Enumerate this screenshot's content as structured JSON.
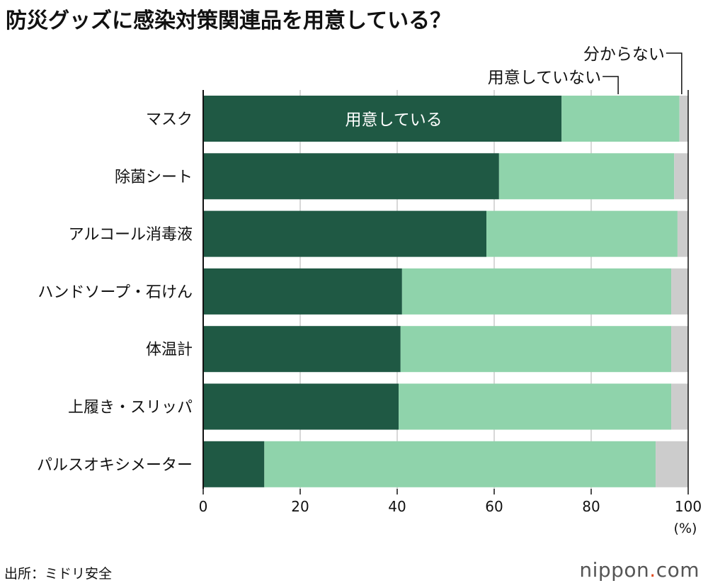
{
  "title": "防災グッズに感染対策関連品を用意している？",
  "source": "出所：ミドリ安全",
  "logo": {
    "main": "nippon",
    "dot": ".",
    "tld": "com"
  },
  "chart_data": {
    "type": "bar",
    "orientation": "horizontal-stacked",
    "title": "防災グッズに感染対策関連品を用意している？",
    "categories": [
      "マスク",
      "除菌シート",
      "アルコール消毒液",
      "ハンドソープ・石けん",
      "体温計",
      "上履き・スリッパ",
      "パルスオキシメーター"
    ],
    "series": [
      {
        "name": "用意している",
        "color": "#1f5944",
        "values": [
          73.9,
          61.0,
          58.4,
          41.0,
          40.7,
          40.3,
          12.6
        ]
      },
      {
        "name": "用意していない",
        "color": "#8fd3ab",
        "values": [
          24.3,
          36.1,
          39.4,
          55.5,
          55.8,
          56.2,
          80.7
        ]
      },
      {
        "name": "分からない",
        "color": "#cccccc",
        "values": [
          1.8,
          2.9,
          2.2,
          3.5,
          3.5,
          3.5,
          6.7
        ]
      }
    ],
    "xlim": [
      0,
      100
    ],
    "xticks": [
      "0",
      "20",
      "40",
      "60",
      "80",
      "100"
    ],
    "xlabel": "(%)",
    "grid": true
  }
}
